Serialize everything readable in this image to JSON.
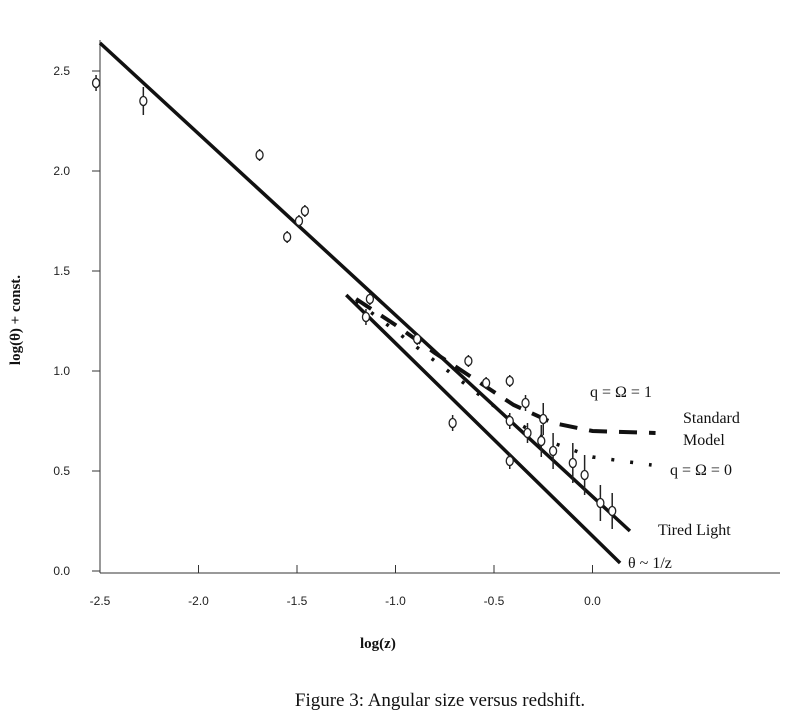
{
  "chart_data": {
    "type": "scatter",
    "caption": "Figure 3: Angular size versus redshift.",
    "xlabel": "log(z)",
    "ylabel": "log(θ) + const.",
    "xlim": [
      -2.5,
      0.3
    ],
    "ylim": [
      0,
      2.6
    ],
    "xticks": [
      "-2.5",
      "-2.0",
      "-1.5",
      "-1.0",
      "-0.5",
      "0.0"
    ],
    "xtick_values": [
      -2.5,
      -2.0,
      -1.5,
      -1.0,
      -0.5,
      0.0
    ],
    "yticks": [
      "0.0",
      "0.5",
      "1.0",
      "1.5",
      "2.0",
      "2.5"
    ],
    "ytick_values": [
      0,
      0.5,
      1.0,
      1.5,
      2.0,
      2.5
    ],
    "grid": false,
    "points": [
      [
        -2.52,
        2.44,
        0.04
      ],
      [
        -2.28,
        2.35,
        0.07
      ],
      [
        -1.69,
        2.08,
        0.03
      ],
      [
        -1.55,
        1.67,
        0.03
      ],
      [
        -1.49,
        1.75,
        0.03
      ],
      [
        -1.46,
        1.8,
        0.03
      ],
      [
        -1.15,
        1.27,
        0.04
      ],
      [
        -1.13,
        1.36,
        0.03
      ],
      [
        -0.89,
        1.16,
        0.03
      ],
      [
        -0.71,
        0.74,
        0.04
      ],
      [
        -0.63,
        1.05,
        0.03
      ],
      [
        -0.54,
        0.94,
        0.03
      ],
      [
        -0.42,
        0.95,
        0.03
      ],
      [
        -0.42,
        0.75,
        0.04
      ],
      [
        -0.42,
        0.55,
        0.04
      ],
      [
        -0.34,
        0.84,
        0.04
      ],
      [
        -0.33,
        0.69,
        0.05
      ],
      [
        -0.25,
        0.76,
        0.08
      ],
      [
        -0.26,
        0.65,
        0.08
      ],
      [
        -0.2,
        0.6,
        0.09
      ],
      [
        -0.1,
        0.54,
        0.1
      ],
      [
        -0.04,
        0.48,
        0.1
      ],
      [
        0.04,
        0.34,
        0.09
      ],
      [
        0.1,
        0.3,
        0.09
      ]
    ],
    "series": [
      {
        "name": "Tired Light",
        "style": "solid",
        "x": [
          -2.5,
          0.19
        ],
        "y": [
          2.64,
          0.2
        ]
      },
      {
        "name": "θ ~ 1/z",
        "style": "solid",
        "x": [
          -1.25,
          0.14
        ],
        "y": [
          1.38,
          0.04
        ]
      },
      {
        "name": "Standard Model q = Ω = 1",
        "style": "dashed",
        "x": [
          -1.2,
          -1.0,
          -0.8,
          -0.6,
          -0.4,
          -0.2,
          0.0,
          0.32
        ],
        "y": [
          1.36,
          1.23,
          1.09,
          0.96,
          0.83,
          0.74,
          0.7,
          0.69
        ]
      },
      {
        "name": "q = Ω = 0",
        "style": "dotted",
        "x": [
          -1.2,
          -1.0,
          -0.8,
          -0.6,
          -0.4,
          -0.2,
          0.0,
          0.3
        ],
        "y": [
          1.35,
          1.2,
          1.05,
          0.9,
          0.75,
          0.64,
          0.57,
          0.53
        ]
      }
    ],
    "annotations": {
      "q1": "q = Ω = 1",
      "standard": "Standard",
      "model": "Model",
      "q0": "q = Ω = 0",
      "tired": "Tired Light",
      "inverse": "θ ~ 1/z"
    }
  }
}
